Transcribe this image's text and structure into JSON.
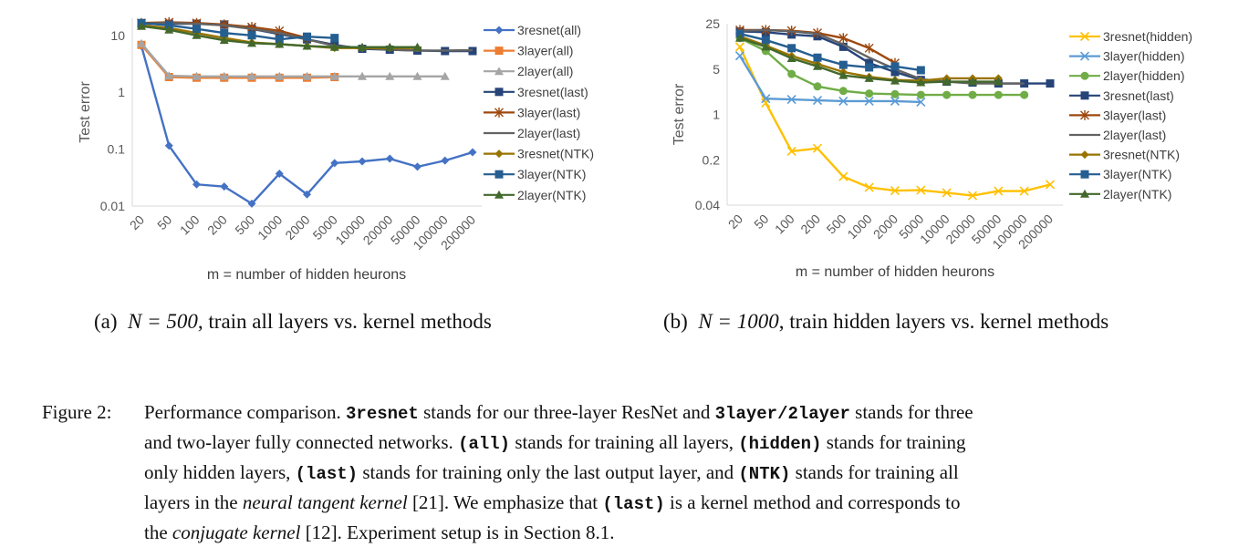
{
  "chart_data": [
    {
      "type": "line",
      "xlabel": "m = number of hidden heurons",
      "ylabel": "Test error",
      "yscale": "log",
      "ylim": [
        0.01,
        20
      ],
      "y_ticks": [
        "0.01",
        "0.1",
        "1",
        "10"
      ],
      "categories": [
        "20",
        "50",
        "100",
        "200",
        "500",
        "1000",
        "2000",
        "5000",
        "10000",
        "20000",
        "50000",
        "100000",
        "200000"
      ],
      "legend_position": "right",
      "series": [
        {
          "name": "3resnet(all)",
          "color": "#4472C4",
          "marker": "diamond",
          "values": [
            6.5,
            0.115,
            0.024,
            0.022,
            0.011,
            0.037,
            0.016,
            0.057,
            0.061,
            0.068,
            0.049,
            0.063,
            0.088
          ]
        },
        {
          "name": "3layer(all)",
          "color": "#ED7D31",
          "marker": "square",
          "values": [
            6.8,
            1.85,
            1.8,
            1.8,
            1.8,
            1.8,
            1.8,
            1.85,
            null,
            null,
            null,
            null,
            null
          ]
        },
        {
          "name": "2layer(all)",
          "color": "#A5A5A5",
          "marker": "triangle",
          "values": [
            7.2,
            1.95,
            1.9,
            1.9,
            1.9,
            1.9,
            1.9,
            1.9,
            1.9,
            1.9,
            1.9,
            1.9,
            null
          ]
        },
        {
          "name": "3resnet(last)",
          "color": "#264478",
          "marker": "square",
          "values": [
            16,
            16,
            16,
            15.5,
            13,
            10.5,
            8.5,
            6.8,
            5.8,
            5.6,
            5.4,
            5.3,
            5.3
          ]
        },
        {
          "name": "3layer(last)",
          "color": "#9E480E",
          "marker": "star",
          "values": [
            16.5,
            17,
            16.5,
            15.5,
            14,
            12,
            9,
            null,
            null,
            null,
            null,
            null,
            null
          ]
        },
        {
          "name": "2layer(last)",
          "color": "#636363",
          "marker": "none",
          "values": [
            16,
            16.5,
            16,
            15,
            13,
            11,
            8.5,
            6.5,
            6,
            5.6,
            5.4,
            5.4,
            5.5
          ]
        },
        {
          "name": "3resnet(NTK)",
          "color": "#997300",
          "marker": "diamond",
          "values": [
            15,
            13.5,
            11,
            9,
            7.5,
            7,
            6.5,
            6,
            6,
            6,
            6,
            null,
            null
          ]
        },
        {
          "name": "3layer(NTK)",
          "color": "#255E91",
          "marker": "square",
          "values": [
            16.5,
            15,
            13,
            11,
            10,
            8.5,
            9.5,
            9,
            null,
            null,
            null,
            null,
            null
          ]
        },
        {
          "name": "2layer(NTK)",
          "color": "#43682B",
          "marker": "triangle",
          "values": [
            14.5,
            12.5,
            10,
            8.2,
            7.3,
            7,
            6.5,
            6.2,
            6.2,
            6.2,
            6.2,
            null,
            null
          ]
        }
      ]
    },
    {
      "type": "line",
      "xlabel": "m = number of hidden heurons",
      "ylabel": "Test error",
      "yscale": "log",
      "ylim": [
        0.04,
        25
      ],
      "y_ticks": [
        "0.04",
        "0.2",
        "1",
        "5",
        "25"
      ],
      "categories": [
        "20",
        "50",
        "100",
        "200",
        "500",
        "1000",
        "2000",
        "5000",
        "10000",
        "20000",
        "50000",
        "100000",
        "200000"
      ],
      "legend_position": "right",
      "series": [
        {
          "name": "3resnet(hidden)",
          "color": "#FFC000",
          "marker": "x",
          "values": [
            11,
            1.5,
            0.27,
            0.3,
            0.11,
            0.075,
            0.067,
            0.068,
            0.062,
            0.056,
            0.066,
            0.066,
            0.083
          ]
        },
        {
          "name": "3layer(hidden)",
          "color": "#5B9BD5",
          "marker": "x",
          "values": [
            8,
            1.75,
            1.7,
            1.65,
            1.6,
            1.6,
            1.6,
            1.55,
            null,
            null,
            null,
            null,
            null
          ]
        },
        {
          "name": "2layer(hidden)",
          "color": "#70AD47",
          "marker": "circle",
          "values": [
            15,
            9.5,
            4.2,
            2.7,
            2.3,
            2.1,
            2.05,
            2.0,
            2.0,
            2.0,
            2.0,
            2.0,
            null
          ]
        },
        {
          "name": "3resnet(last)",
          "color": "#264478",
          "marker": "square",
          "values": [
            19,
            18.5,
            17,
            16,
            11,
            6.2,
            4.5,
            3.4,
            3.2,
            3.1,
            3.0,
            3.0,
            3.0
          ]
        },
        {
          "name": "3layer(last)",
          "color": "#9E480E",
          "marker": "star",
          "values": [
            20,
            20,
            19.5,
            18,
            15,
            10.5,
            6.2,
            null,
            null,
            null,
            null,
            null,
            null
          ]
        },
        {
          "name": "2layer(last)",
          "color": "#636363",
          "marker": "none",
          "values": [
            19.5,
            20,
            19,
            17.5,
            12,
            7.5,
            5,
            3.5,
            3.2,
            3.0,
            3.0,
            3.0,
            null
          ]
        },
        {
          "name": "3resnet(NTK)",
          "color": "#997300",
          "marker": "diamond",
          "values": [
            16,
            11.5,
            8,
            6,
            4.5,
            3.8,
            3.4,
            3.3,
            3.6,
            3.6,
            3.6,
            null,
            null
          ]
        },
        {
          "name": "3layer(NTK)",
          "color": "#255E91",
          "marker": "square",
          "values": [
            17.5,
            14,
            10.5,
            7.5,
            5.8,
            5.3,
            5.5,
            4.8,
            null,
            null,
            null,
            null,
            null
          ]
        },
        {
          "name": "2layer(NTK)",
          "color": "#43682B",
          "marker": "triangle",
          "values": [
            15,
            11,
            7.3,
            5.5,
            4,
            3.6,
            3.3,
            3.1,
            3.2,
            3.2,
            3.2,
            null,
            null
          ]
        }
      ]
    }
  ],
  "subcaption_a": {
    "label": "(a)",
    "equation": "N = 500",
    "text": ", train all layers vs. kernel methods"
  },
  "subcaption_b": {
    "label": "(b)",
    "equation": "N = 1000",
    "text": ", train hidden layers vs. kernel methods"
  },
  "caption": {
    "label": "Figure 2:",
    "t1": "Performance comparison.",
    "c1": "3resnet",
    "t2": "stands for our three-layer ResNet and",
    "c2": "3layer/2layer",
    "t3": "stands for three",
    "t4": "and two-layer fully connected networks.",
    "c3": "(all)",
    "t5": "stands for training all layers,",
    "c4": "(hidden)",
    "t6": "stands for training",
    "t7": "only hidden layers,",
    "c5": "(last)",
    "t8": "stands for training only the last output layer, and",
    "c6": "(NTK)",
    "t9": "stands for training all",
    "t10": "layers in the",
    "i1": "neural tangent kernel",
    "t11": "[21]. We emphasize that",
    "c7": "(last)",
    "t12": "is a kernel method and corresponds to",
    "t13": "the",
    "i2": "conjugate kernel",
    "t14": "[12]. Experiment setup is in Section 8.1."
  }
}
